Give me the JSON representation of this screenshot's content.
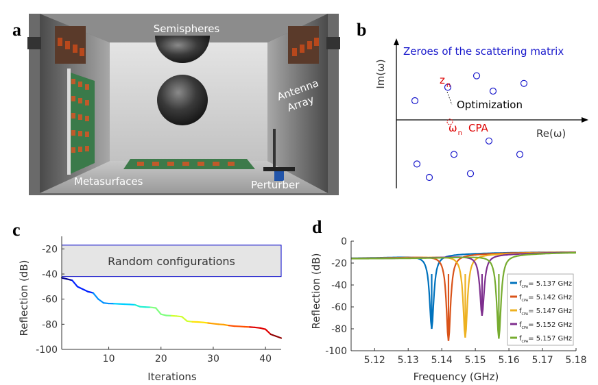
{
  "panel_labels": {
    "a": "a",
    "b": "b",
    "c": "c",
    "d": "d"
  },
  "panel_a": {
    "labels": {
      "semispheres": "Semispheres",
      "antenna": "Antenna",
      "array": "Array",
      "metasurfaces": "Metasurfaces",
      "perturber": "Perturber"
    }
  },
  "panel_b": {
    "title": "Zeroes of the scattering matrix",
    "y_axis": "Im(ω)",
    "x_axis": "Re(ω)",
    "z_main": "z",
    "z_sub": "n",
    "omega_main": "ω",
    "omega_sub": "n",
    "cpa": "CPA",
    "optimization": "Optimization",
    "zeros": [
      {
        "re": 0.9,
        "im": 1.0
      },
      {
        "re": 2.5,
        "im": 1.7
      },
      {
        "re": 3.9,
        "im": 2.3
      },
      {
        "re": 4.7,
        "im": 1.5
      },
      {
        "re": 6.2,
        "im": 1.9
      },
      {
        "re": 1.0,
        "im": -2.3
      },
      {
        "re": 1.6,
        "im": -3.0
      },
      {
        "re": 2.8,
        "im": -1.8
      },
      {
        "re": 3.6,
        "im": -2.8
      },
      {
        "re": 4.5,
        "im": -1.1
      },
      {
        "re": 6.0,
        "im": -1.8
      }
    ],
    "cpa_point": {
      "re": 2.6,
      "im": -0.1
    }
  },
  "chart_data": [
    {
      "type": "line",
      "panel": "c",
      "xlabel": "Iterations",
      "ylabel": "Reflection (dB)",
      "xlim": [
        1,
        43
      ],
      "ylim": [
        -100,
        -10
      ],
      "xticks": [
        10,
        20,
        30,
        40
      ],
      "yticks": [
        -20,
        -40,
        -60,
        -80,
        -100
      ],
      "band": {
        "label": "Random configurations",
        "from": -42,
        "to": -17
      },
      "x": [
        1,
        2,
        3,
        4,
        5,
        6,
        7,
        8,
        9,
        10,
        11,
        12,
        13,
        14,
        15,
        16,
        17,
        18,
        19,
        20,
        21,
        22,
        23,
        24,
        25,
        26,
        27,
        28,
        29,
        30,
        31,
        32,
        33,
        34,
        35,
        36,
        37,
        38,
        39,
        40,
        41,
        42,
        43
      ],
      "values": [
        -43,
        -44,
        -45,
        -50,
        -52,
        -54,
        -55,
        -60,
        -63,
        -63.5,
        -63.6,
        -63.8,
        -64,
        -64.2,
        -64.5,
        -66,
        -66.3,
        -66.5,
        -67,
        -72,
        -73,
        -73.2,
        -73.5,
        -74,
        -77.5,
        -78,
        -78.2,
        -78.5,
        -79,
        -79.5,
        -80,
        -80.3,
        -81,
        -81.5,
        -81.7,
        -82,
        -82.2,
        -82.5,
        -83,
        -84,
        -88,
        -89.5,
        -91
      ]
    },
    {
      "type": "line",
      "panel": "d",
      "xlabel": "Frequency (GHz)",
      "ylabel": "Reflection (dB)",
      "xlim": [
        5.113,
        5.18
      ],
      "ylim": [
        -100,
        0
      ],
      "xticks": [
        5.12,
        5.13,
        5.14,
        5.15,
        5.16,
        5.17,
        5.18
      ],
      "yticks": [
        0,
        -20,
        -40,
        -60,
        -80,
        -100
      ],
      "series": [
        {
          "name": "= 5.137 GHz",
          "f0": 5.137,
          "min": -80,
          "color": "#0072BD"
        },
        {
          "name": "= 5.142 GHz",
          "f0": 5.142,
          "min": -91,
          "color": "#D95319"
        },
        {
          "name": "= 5.147 GHz",
          "f0": 5.147,
          "min": -88,
          "color": "#EDB120"
        },
        {
          "name": "= 5.152 GHz",
          "f0": 5.152,
          "min": -68,
          "color": "#7E2F8E"
        },
        {
          "name": "= 5.157 GHz",
          "f0": 5.157,
          "min": -89,
          "color": "#77AC30"
        }
      ],
      "legend_f": "f",
      "legend_sub": "CPA",
      "legend_position": "right"
    }
  ]
}
